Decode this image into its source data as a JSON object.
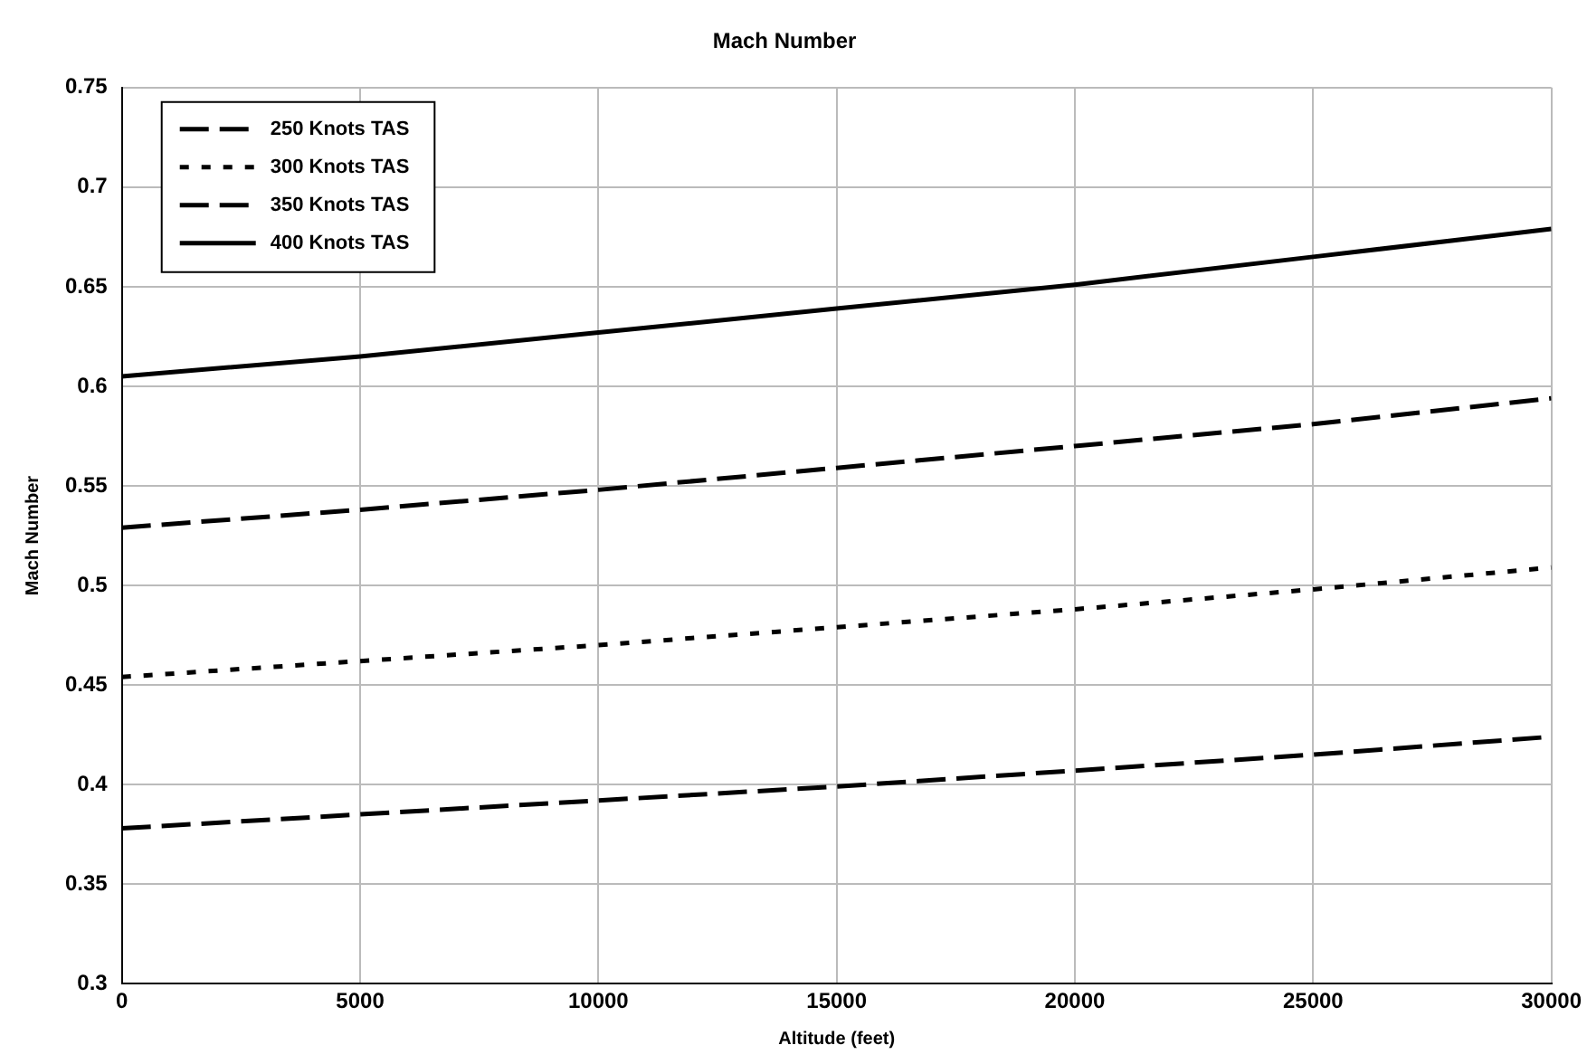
{
  "chart_data": {
    "type": "line",
    "title": "Mach Number",
    "xlabel": "Altitude (feet)",
    "ylabel": "Mach Number",
    "x": [
      0,
      5000,
      10000,
      15000,
      20000,
      25000,
      30000
    ],
    "xlim": [
      0,
      30000
    ],
    "xticks": [
      0,
      5000,
      10000,
      15000,
      20000,
      25000,
      30000
    ],
    "ylim": [
      0.3,
      0.75
    ],
    "yticks": [
      0.3,
      0.35,
      0.4,
      0.45,
      0.5,
      0.55,
      0.6,
      0.65,
      0.7,
      0.75
    ],
    "grid": true,
    "legend": "top left",
    "marker": "none",
    "series": [
      {
        "name": "250 Knots TAS",
        "color": "#000000",
        "line_style": "dashed",
        "values": [
          0.378,
          0.385,
          0.392,
          0.399,
          0.407,
          0.415,
          0.424
        ]
      },
      {
        "name": "300 Knots TAS",
        "color": "#000000",
        "line_style": "dotted",
        "values": [
          0.454,
          0.462,
          0.47,
          0.479,
          0.488,
          0.498,
          0.509
        ]
      },
      {
        "name": "350 Knots TAS",
        "color": "#000000",
        "line_style": "dashed",
        "values": [
          0.529,
          0.538,
          0.548,
          0.559,
          0.57,
          0.581,
          0.594
        ]
      },
      {
        "name": "400 Knots TAS",
        "color": "#000000",
        "line_style": "solid",
        "values": [
          0.605,
          0.615,
          0.627,
          0.639,
          0.651,
          0.665,
          0.679
        ]
      }
    ]
  }
}
